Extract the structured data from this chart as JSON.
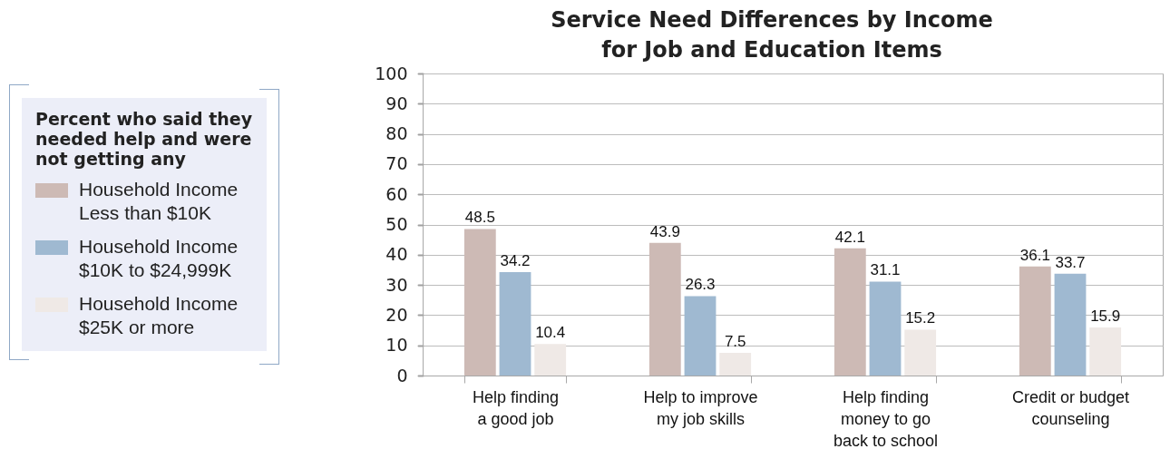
{
  "chart_data": {
    "type": "bar",
    "title": "Service Need Differences by Income for Job and Education Items",
    "legend_title": "Percent who said they needed help and were not getting any",
    "categories": [
      "Help finding a good job",
      "Help to improve my job skills",
      "Help finding money to go back to school",
      "Credit or budget counseling"
    ],
    "series": [
      {
        "name": "Household Income Less than $10K",
        "color": "#cdbab5",
        "values": [
          48.5,
          43.9,
          42.1,
          36.1
        ]
      },
      {
        "name": "Household Income $10K to $24,999K",
        "color": "#9fb9d1",
        "values": [
          34.2,
          26.3,
          31.1,
          33.7
        ]
      },
      {
        "name": "Household Income $25K or more",
        "color": "#efe9e6",
        "values": [
          10.4,
          7.5,
          15.2,
          15.9
        ]
      }
    ],
    "ylim": [
      0,
      100
    ],
    "yticks": [
      0,
      10,
      20,
      30,
      40,
      50,
      60,
      70,
      80,
      90,
      100
    ],
    "grid": "y",
    "legend": "left",
    "data_labels": true
  }
}
